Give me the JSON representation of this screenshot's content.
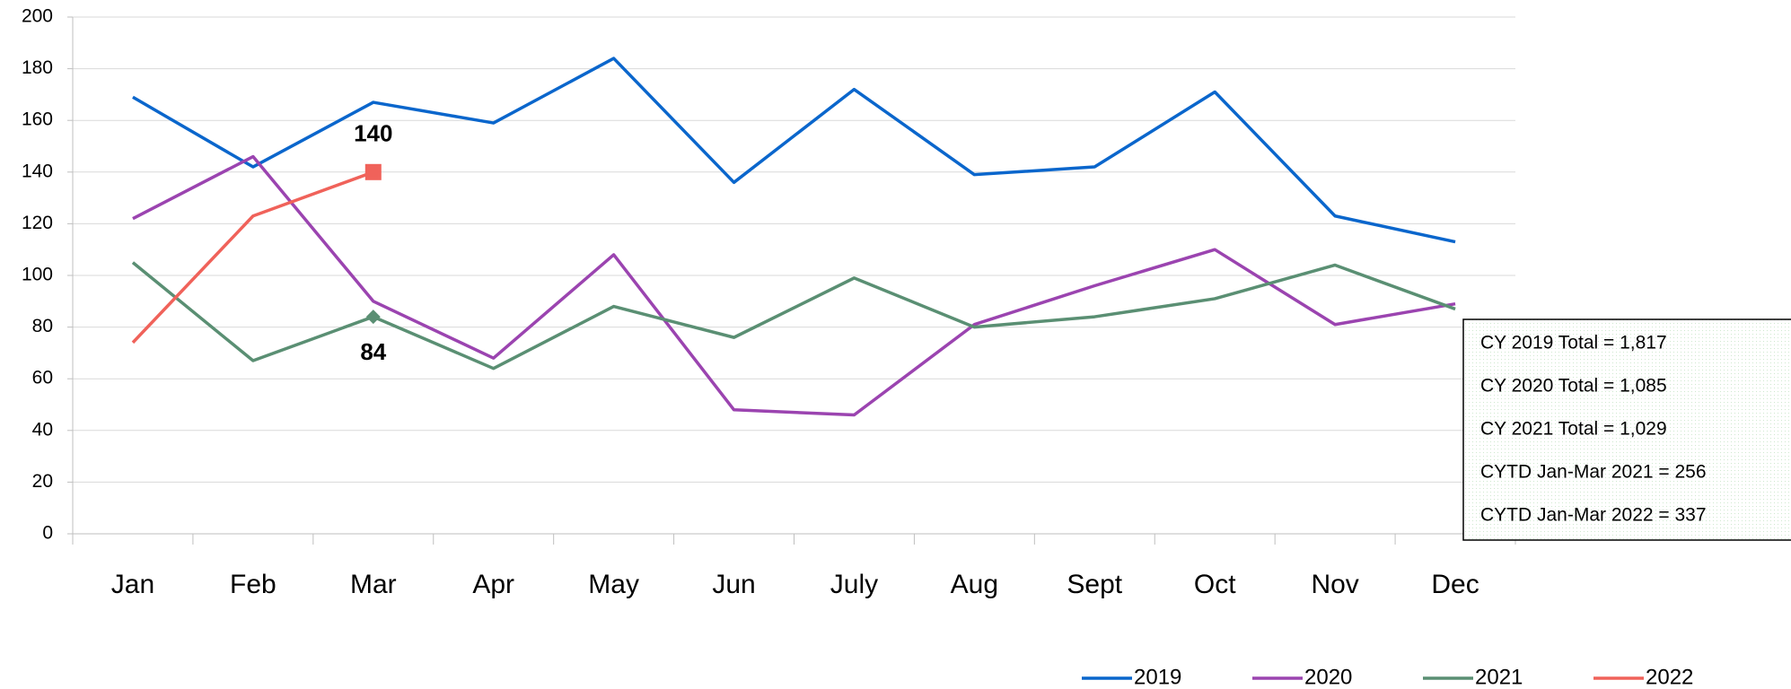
{
  "chart_data": {
    "type": "line",
    "categories": [
      "Jan",
      "Feb",
      "Mar",
      "Apr",
      "May",
      "Jun",
      "July",
      "Aug",
      "Sept",
      "Oct",
      "Nov",
      "Dec"
    ],
    "series": [
      {
        "name": "2019",
        "color": "#0a66cc",
        "values": [
          169,
          142,
          167,
          159,
          184,
          136,
          172,
          139,
          142,
          171,
          123,
          113
        ]
      },
      {
        "name": "2020",
        "color": "#9b44b0",
        "values": [
          122,
          146,
          90,
          68,
          108,
          48,
          46,
          81,
          96,
          110,
          81,
          89
        ]
      },
      {
        "name": "2021",
        "color": "#5a8f73",
        "values": [
          105,
          67,
          84,
          64,
          88,
          76,
          99,
          80,
          84,
          91,
          104,
          87
        ],
        "marker": "diamond"
      },
      {
        "name": "2022",
        "color": "#f0625a",
        "values": [
          74,
          123,
          140,
          null,
          null,
          null,
          null,
          null,
          null,
          null,
          null,
          null
        ],
        "marker": "square"
      }
    ],
    "ylim": [
      0,
      200
    ],
    "yticks": [
      0,
      20,
      40,
      60,
      80,
      100,
      120,
      140,
      160,
      180,
      200
    ],
    "grid": true,
    "legend": "bottom-right",
    "annotations": [
      "CY 2019 Total = 1,817",
      "CY 2020 Total = 1,085",
      "CY 2021 Total = 1,029",
      "CYTD Jan-Mar 2021 = 256",
      "CYTD Jan-Mar 2022 = 337"
    ]
  }
}
